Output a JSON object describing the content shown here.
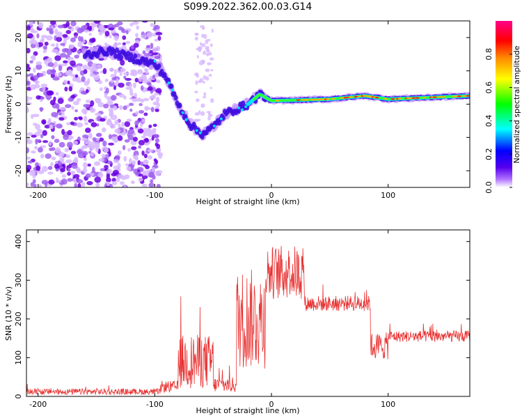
{
  "title": "S099.2022.362.00.03.G14",
  "chart_data": [
    {
      "type": "heatmap",
      "xlabel": "Height of straight line (km)",
      "ylabel": "Frequency (Hz)",
      "xlim": [
        -210,
        170
      ],
      "ylim": [
        -25,
        25
      ],
      "xticks": [
        -200,
        -100,
        0,
        100
      ],
      "yticks": [
        -20,
        -10,
        0,
        10,
        20
      ],
      "colorbar": {
        "label": "Normalized spectral amplitude",
        "range": [
          0,
          1
        ],
        "ticks": [
          "0.0",
          "0.2",
          "0.4",
          "0.6",
          "0.8"
        ],
        "colors": [
          "#ffffff",
          "#8800ff",
          "#0000ff",
          "#00ffff",
          "#00ff00",
          "#ffff00",
          "#ff8800",
          "#ff0000",
          "#ff0088"
        ]
      },
      "ridge": [
        {
          "x": -155,
          "y": 15
        },
        {
          "x": -140,
          "y": 16
        },
        {
          "x": -100,
          "y": 12
        },
        {
          "x": -90,
          "y": 8
        },
        {
          "x": -80,
          "y": 0
        },
        {
          "x": -70,
          "y": -6
        },
        {
          "x": -60,
          "y": -9
        },
        {
          "x": -50,
          "y": -7
        },
        {
          "x": -40,
          "y": -3
        },
        {
          "x": -20,
          "y": 0
        },
        {
          "x": -10,
          "y": 3
        },
        {
          "x": 0,
          "y": 1
        },
        {
          "x": 50,
          "y": 1.5
        },
        {
          "x": 80,
          "y": 2.5
        },
        {
          "x": 100,
          "y": 1.5
        },
        {
          "x": 170,
          "y": 2.5
        }
      ]
    },
    {
      "type": "line",
      "xlabel": "Height of straight line (km)",
      "ylabel": "SNR (10 * v/v)",
      "xlim": [
        -210,
        170
      ],
      "ylim": [
        0,
        430
      ],
      "xticks": [
        -200,
        -100,
        0,
        100
      ],
      "yticks": [
        0,
        100,
        200,
        300,
        400
      ],
      "color": "#e83030",
      "segments": [
        {
          "x0": -210,
          "x1": -95,
          "mean": 12,
          "noise": 8
        },
        {
          "x0": -95,
          "x1": -80,
          "mean": 25,
          "noise": 15
        },
        {
          "x0": -80,
          "x1": -50,
          "mean": 90,
          "noise": 70
        },
        {
          "x0": -50,
          "x1": -30,
          "mean": 30,
          "noise": 20
        },
        {
          "x0": -30,
          "x1": -5,
          "mean": 200,
          "noise": 130
        },
        {
          "x0": -5,
          "x1": 28,
          "mean": 320,
          "noise": 70
        },
        {
          "x0": 28,
          "x1": 85,
          "mean": 240,
          "noise": 20
        },
        {
          "x0": 85,
          "x1": 100,
          "mean": 130,
          "noise": 35
        },
        {
          "x0": 100,
          "x1": 170,
          "mean": 155,
          "noise": 15
        }
      ]
    }
  ]
}
